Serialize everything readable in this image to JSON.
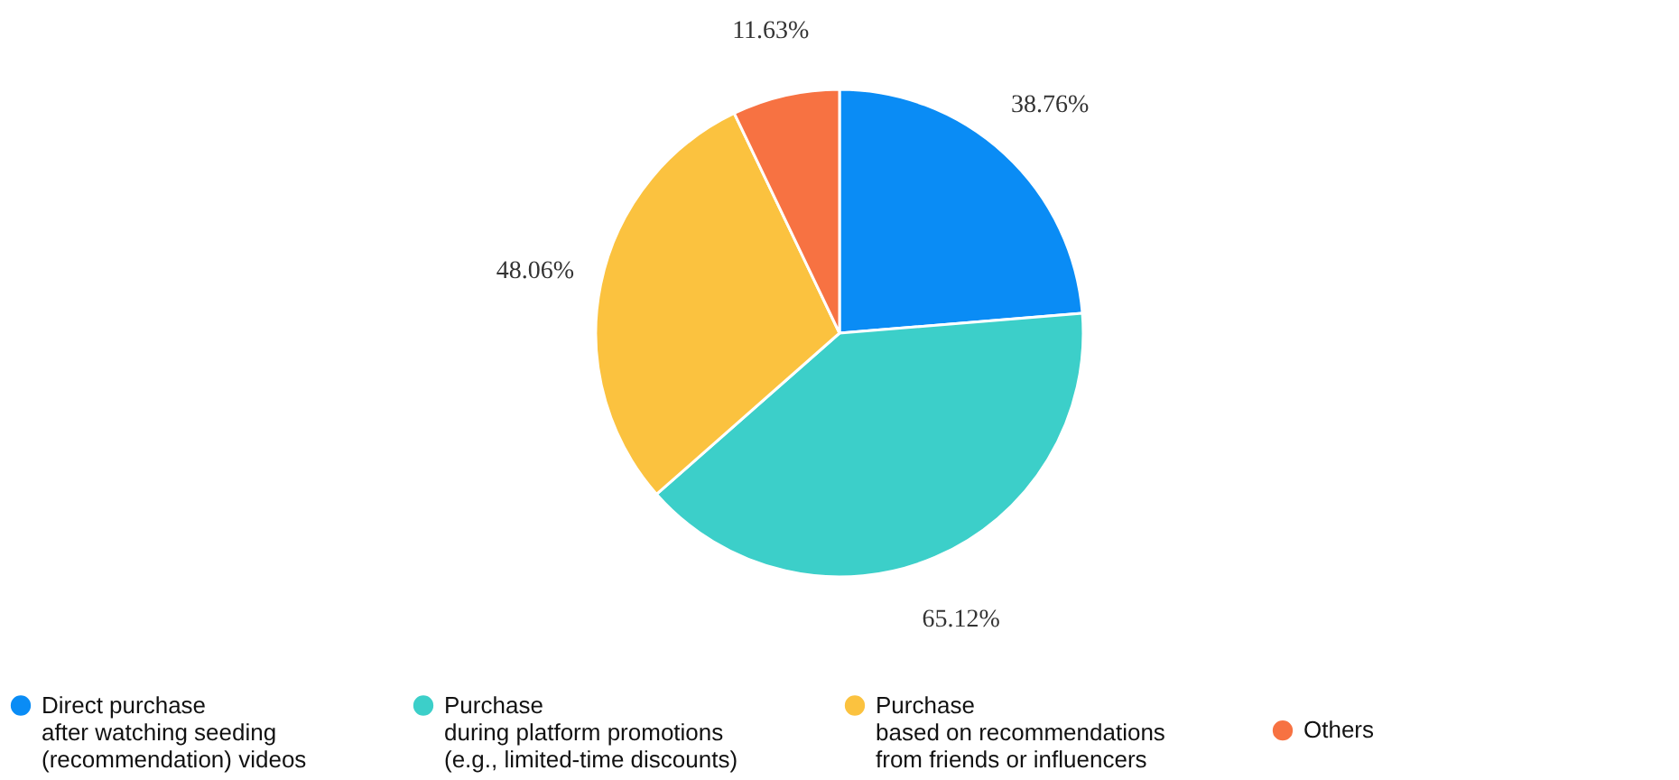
{
  "chart_data": {
    "type": "pie",
    "categories": [
      "Direct purchase\nafter watching seeding\n(recommendation) videos",
      "Purchase\nduring platform promotions\n(e.g., limited-time discounts)",
      "Purchase\nbased on recommendations\nfrom friends or influencers",
      "Others"
    ],
    "values": [
      38.76,
      65.12,
      48.06,
      11.63
    ],
    "colors": [
      "#0a8cf5",
      "#3ccfc9",
      "#fbc23f",
      "#f77242"
    ],
    "value_labels": [
      "38.76%",
      "65.12%",
      "48.06%",
      "11.63%"
    ],
    "legend": "bottom"
  }
}
